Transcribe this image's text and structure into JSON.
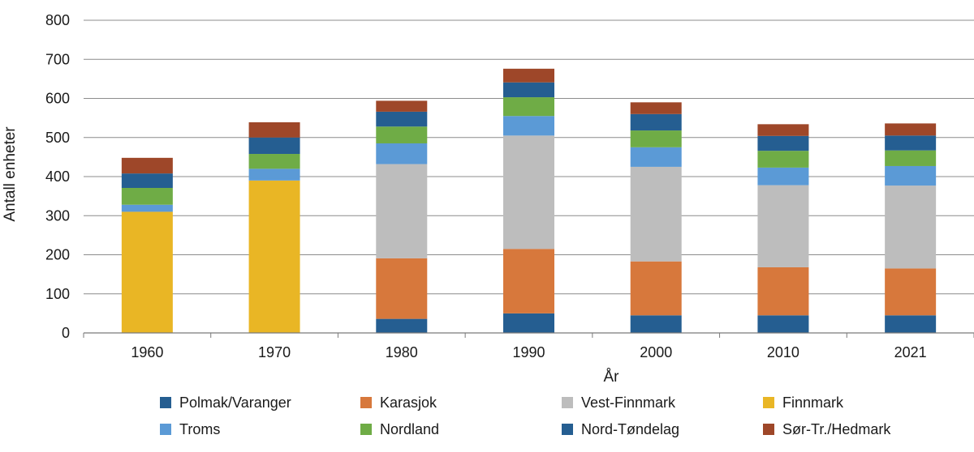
{
  "chart_data": {
    "type": "bar",
    "stacked": true,
    "title": "",
    "xlabel": "År",
    "ylabel": "Antall enheter",
    "ylim": [
      0,
      800
    ],
    "yticks": [
      "0",
      "100",
      "200",
      "300",
      "400",
      "500",
      "600",
      "700",
      "800"
    ],
    "grid": true,
    "legend_position": "bottom",
    "categories": [
      "1960",
      "1970",
      "1980",
      "1990",
      "2000",
      "2010",
      "2021"
    ],
    "series": [
      {
        "name": "Polmak/Varanger",
        "color": "#255e91",
        "values": [
          0,
          0,
          36,
          50,
          45,
          45,
          45
        ]
      },
      {
        "name": "Karasjok",
        "color": "#d7783c",
        "values": [
          0,
          0,
          155,
          165,
          138,
          123,
          120
        ]
      },
      {
        "name": "Vest-Finnmark",
        "color": "#bdbdbd",
        "values": [
          0,
          0,
          241,
          290,
          242,
          210,
          212
        ]
      },
      {
        "name": "Finnmark",
        "color": "#e9b625",
        "values": [
          310,
          390,
          0,
          0,
          0,
          0,
          0
        ]
      },
      {
        "name": "Troms",
        "color": "#5b9ad6",
        "values": [
          18,
          30,
          53,
          50,
          50,
          45,
          50
        ]
      },
      {
        "name": "Nordland",
        "color": "#6fac46",
        "values": [
          43,
          38,
          43,
          48,
          43,
          43,
          40
        ]
      },
      {
        "name": "Nord-Tøndelag",
        "color": "#255e91",
        "values": [
          37,
          42,
          38,
          38,
          42,
          38,
          38
        ]
      },
      {
        "name": "Sør-Tr./Hedmark",
        "color": "#9e4729",
        "values": [
          40,
          39,
          28,
          35,
          30,
          30,
          31
        ]
      }
    ]
  }
}
